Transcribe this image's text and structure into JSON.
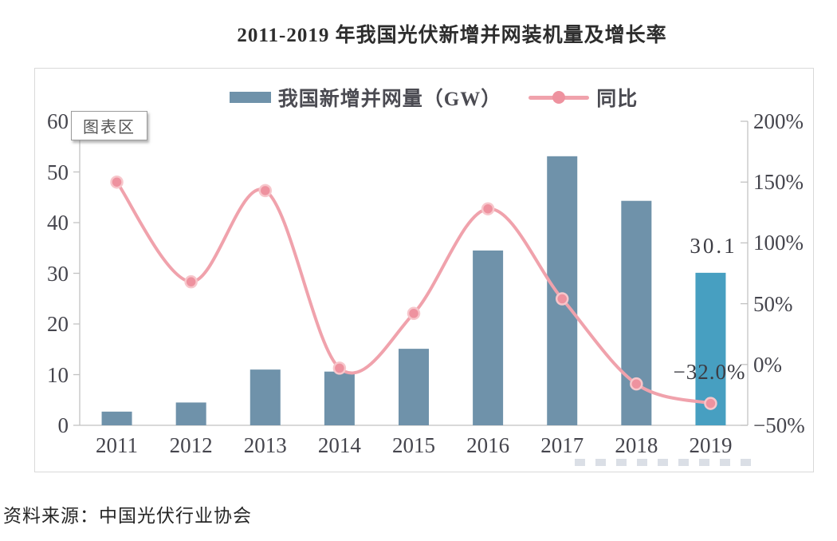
{
  "page": {
    "title": "2011-2019 年我国光伏新增并网装机量及增长率"
  },
  "chart_area_label": "图表区",
  "legend": {
    "bars_label": "我国新增并网量（GW）",
    "line_label": "同比"
  },
  "source": {
    "text": "资料来源：中国光伏行业协会"
  },
  "chart_data": {
    "type": "bar",
    "title": "2011-2019 年我国光伏新增并网装机量及增长率",
    "categories": [
      "2011",
      "2012",
      "2013",
      "2014",
      "2015",
      "2016",
      "2017",
      "2018",
      "2019"
    ],
    "series": [
      {
        "name": "我国新增并网量（GW）",
        "type": "bar",
        "axis": "left",
        "unit": "GW",
        "values": [
          2.7,
          4.5,
          11.0,
          10.6,
          15.1,
          34.5,
          53.1,
          44.3,
          30.1
        ]
      },
      {
        "name": "同比",
        "type": "line",
        "axis": "right",
        "unit": "%",
        "values": [
          150,
          68,
          143,
          -3,
          42,
          128,
          54,
          -16,
          -32
        ]
      }
    ],
    "left_axis": {
      "range": [
        0,
        60
      ],
      "ticks": [
        0,
        10,
        20,
        30,
        40,
        50,
        60
      ],
      "tick_labels": [
        "0",
        "10",
        "20",
        "30",
        "40",
        "50",
        "60"
      ]
    },
    "right_axis": {
      "range": [
        -50,
        200
      ],
      "ticks": [
        -50,
        0,
        50,
        100,
        150,
        200
      ],
      "tick_labels": [
        "−50%",
        "0%",
        "50%",
        "100%",
        "150%",
        "200%"
      ]
    },
    "annotations": [
      {
        "text": "30.1",
        "target": "2019 bar value (GW)"
      },
      {
        "text": "−32.0%",
        "target": "2019 line value (growth)"
      }
    ],
    "legend_position": "top-center",
    "grid": false,
    "colors": {
      "bar": "#6f92aa",
      "bar_highlight_2019": "#479fc1",
      "line": "#f0a2ac",
      "dot_fill": "#ee929f",
      "dot_ring": "#f7c6cb",
      "axis": "#c2c2c2"
    }
  }
}
